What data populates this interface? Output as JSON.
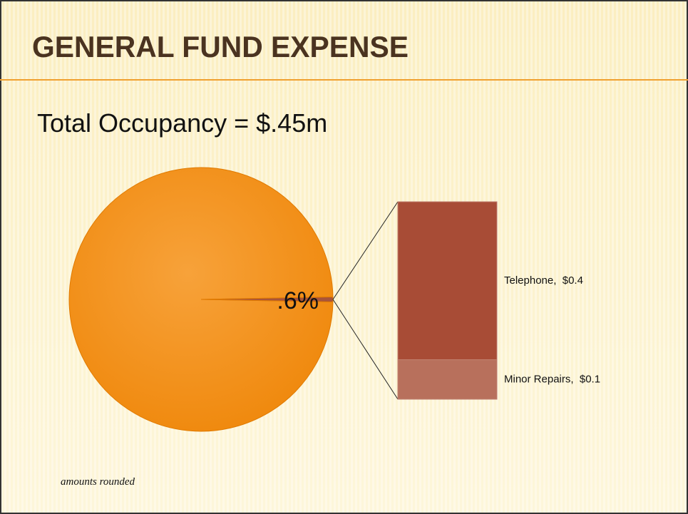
{
  "title": "GENERAL FUND EXPENSE",
  "subtitle": "Total Occupancy = $.45m",
  "footnote": "amounts rounded",
  "chart_data": [
    {
      "type": "pie",
      "values": [
        99.4,
        0.6
      ],
      "value_labels": [
        null,
        ".6%"
      ],
      "colors": [
        "#f28a12",
        "#a8543a"
      ]
    },
    {
      "type": "bar",
      "stacked": true,
      "values": [
        0.4,
        0.1
      ],
      "value_labels": [
        "Telephone,  $0.4",
        "Minor Repairs,  $0.1"
      ],
      "colors": [
        "#a84c36",
        "#b8705c"
      ]
    }
  ]
}
